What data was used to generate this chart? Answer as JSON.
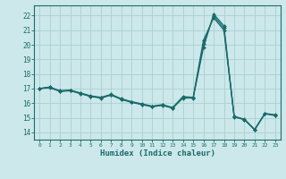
{
  "title": "",
  "xlabel": "Humidex (Indice chaleur)",
  "bg_color": "#cce8ea",
  "grid_color": "#aad0d3",
  "line_color": "#1a6b6b",
  "xlim": [
    -0.5,
    23.5
  ],
  "ylim": [
    13.5,
    22.7
  ],
  "xticks": [
    0,
    1,
    2,
    3,
    4,
    5,
    6,
    7,
    8,
    9,
    10,
    11,
    12,
    13,
    14,
    15,
    16,
    17,
    18,
    19,
    20,
    21,
    22,
    23
  ],
  "yticks": [
    14,
    15,
    16,
    17,
    18,
    19,
    20,
    21,
    22
  ],
  "series1": [
    17.0,
    17.1,
    16.8,
    16.85,
    16.65,
    16.45,
    16.35,
    16.55,
    16.25,
    16.05,
    15.9,
    15.75,
    15.85,
    15.65,
    16.35,
    16.35,
    19.8,
    22.1,
    21.3,
    15.1,
    14.9,
    14.2,
    15.3,
    15.2
  ],
  "series2": [
    17.0,
    17.1,
    16.85,
    16.9,
    16.7,
    16.5,
    16.4,
    16.6,
    16.3,
    16.1,
    15.95,
    15.8,
    15.9,
    15.7,
    16.45,
    16.4,
    20.3,
    21.85,
    21.0,
    15.05,
    14.87,
    14.17,
    15.27,
    15.15
  ],
  "series3": [
    17.0,
    17.05,
    16.82,
    16.87,
    16.67,
    16.47,
    16.37,
    16.57,
    16.27,
    16.07,
    15.92,
    15.77,
    15.87,
    15.67,
    16.4,
    16.37,
    20.05,
    21.97,
    21.15,
    15.07,
    14.88,
    14.18,
    15.28,
    15.17
  ]
}
